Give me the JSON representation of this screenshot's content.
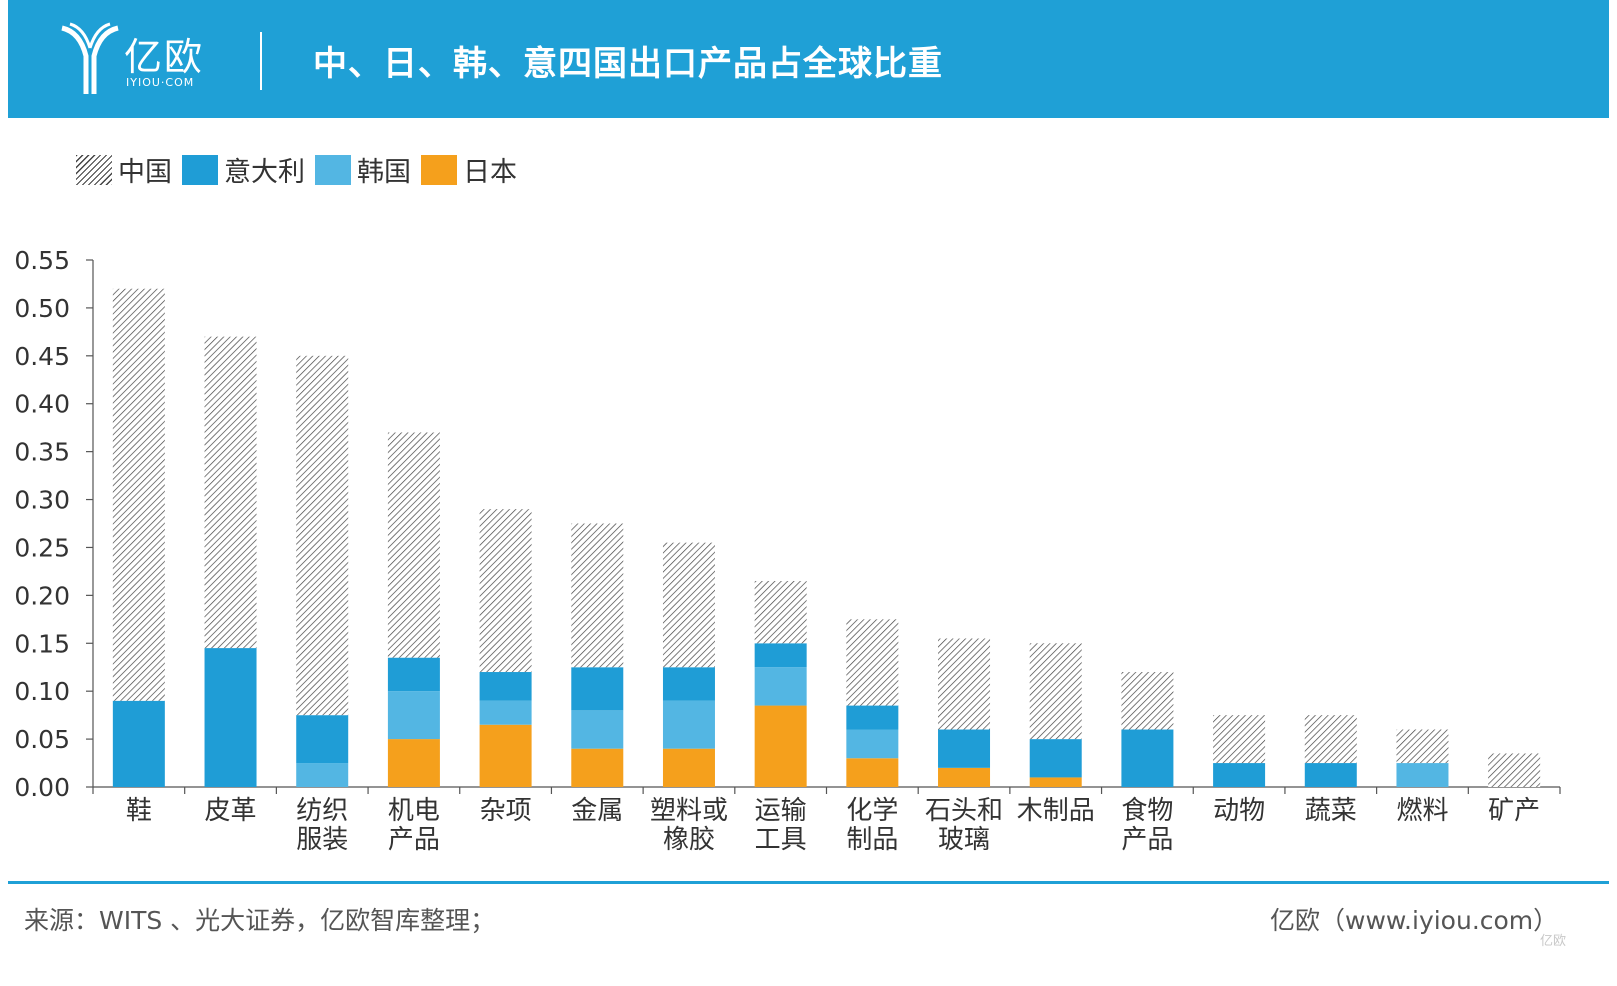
{
  "header": {
    "logo_text": "亿欧",
    "logo_sub": "IYIOU·COM",
    "title": "中、日、韩、意四国出口产品占全球比重"
  },
  "legend": [
    {
      "label": "中国",
      "color": "hatch"
    },
    {
      "label": "意大利",
      "color": "#1f9dd6"
    },
    {
      "label": "韩国",
      "color": "#53b6e3"
    },
    {
      "label": "日本",
      "color": "#f5a01c"
    }
  ],
  "chart_data": {
    "type": "bar",
    "stacked": true,
    "categories": [
      "鞋",
      "皮革",
      "纺织\n服装",
      "机电\n产品",
      "杂项",
      "金属",
      "塑料或\n橡胶",
      "运输\n工具",
      "化学\n制品",
      "石头和\n玻璃",
      "木制品",
      "食物\n产品",
      "动物",
      "蔬菜",
      "燃料",
      "矿产"
    ],
    "series": [
      {
        "name": "日本",
        "color": "#f5a01c",
        "values": [
          0,
          0,
          0,
          0.05,
          0.065,
          0.04,
          0.04,
          0.085,
          0.03,
          0.02,
          0.01,
          0,
          0,
          0,
          0,
          0
        ]
      },
      {
        "name": "韩国",
        "color": "#53b6e3",
        "values": [
          0,
          0,
          0.025,
          0.05,
          0.025,
          0.04,
          0.05,
          0.04,
          0.03,
          0,
          0,
          0,
          0,
          0,
          0.025,
          0
        ]
      },
      {
        "name": "意大利",
        "color": "#1f9dd6",
        "values": [
          0.09,
          0.145,
          0.05,
          0.035,
          0.03,
          0.045,
          0.035,
          0.025,
          0.025,
          0.04,
          0.04,
          0.06,
          0.025,
          0.025,
          0,
          0
        ]
      },
      {
        "name": "中国",
        "color": "hatch",
        "values": [
          0.43,
          0.325,
          0.375,
          0.235,
          0.17,
          0.15,
          0.13,
          0.065,
          0.09,
          0.095,
          0.1,
          0.06,
          0.05,
          0.05,
          0.035,
          0.035
        ]
      }
    ],
    "ylim": [
      0,
      0.55
    ],
    "yticks": [
      "0.00",
      "0.05",
      "0.10",
      "0.15",
      "0.20",
      "0.25",
      "0.30",
      "0.35",
      "0.40",
      "0.45",
      "0.50",
      "0.55"
    ],
    "grid": false,
    "legend_position": "top-left"
  },
  "footer": {
    "source": "来源：WITS 、光大证券，亿欧智库整理；",
    "site": "亿欧（www.iyiou.com）",
    "watermark": "亿欧"
  }
}
